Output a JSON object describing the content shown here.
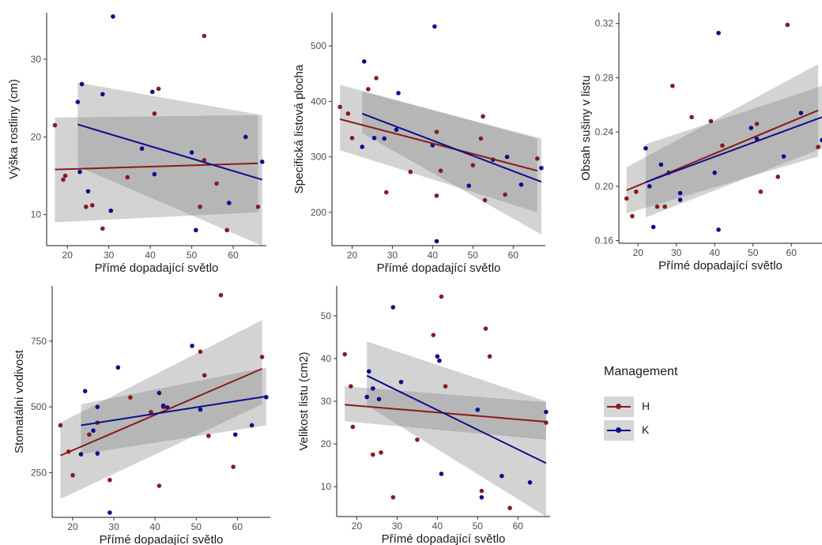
{
  "legend": {
    "title": "Management",
    "items": [
      {
        "label": "H",
        "color": "#8b1a1a"
      },
      {
        "label": "K",
        "color": "#0d0d8c"
      }
    ]
  },
  "chart_data": [
    {
      "type": "scatter",
      "xlabel": "Přímé dopadající světlo",
      "ylabel": "Výška rostliny (cm)",
      "xlim": [
        15,
        68
      ],
      "ylim": [
        6,
        36
      ],
      "xticks": [
        20,
        30,
        40,
        50,
        60
      ],
      "yticks": [
        10,
        20,
        30
      ],
      "series": [
        {
          "name": "H",
          "points": [
            [
              17,
              21.5
            ],
            [
              19,
              14.5
            ],
            [
              19.5,
              15
            ],
            [
              24.5,
              11
            ],
            [
              26,
              11.2
            ],
            [
              28.5,
              8.2
            ],
            [
              34.5,
              14.8
            ],
            [
              41,
              23
            ],
            [
              42,
              26.2
            ],
            [
              52,
              11
            ],
            [
              53,
              17
            ],
            [
              53,
              33
            ],
            [
              56,
              14
            ],
            [
              58.5,
              8
            ],
            [
              66,
              11
            ]
          ],
          "fit": {
            "x": [
              17,
              66
            ],
            "y": [
              15.8,
              16.6
            ],
            "ci_lo": [
              9,
              10.3
            ],
            "ci_hi": [
              22.5,
              22.8
            ]
          }
        },
        {
          "name": "K",
          "points": [
            [
              22.5,
              24.5
            ],
            [
              23,
              15.5
            ],
            [
              23.5,
              26.8
            ],
            [
              25,
              13
            ],
            [
              28.5,
              25.5
            ],
            [
              30.5,
              10.5
            ],
            [
              31,
              35.5
            ],
            [
              38,
              18.5
            ],
            [
              40.5,
              25.8
            ],
            [
              41,
              15.2
            ],
            [
              50,
              18
            ],
            [
              51,
              8
            ],
            [
              59,
              11.5
            ],
            [
              63,
              20
            ],
            [
              67,
              16.8
            ]
          ],
          "fit": {
            "x": [
              22.5,
              67
            ],
            "y": [
              21.6,
              14.5
            ],
            "ci_lo": [
              16.2,
              6
            ],
            "ci_hi": [
              27,
              22.8
            ]
          }
        }
      ]
    },
    {
      "type": "scatter",
      "xlabel": "Přímé dopadající světlo",
      "ylabel": "Specifická listová plocha",
      "xlim": [
        15,
        68
      ],
      "ylim": [
        140,
        560
      ],
      "xticks": [
        20,
        30,
        40,
        50,
        60
      ],
      "yticks": [
        200,
        300,
        400,
        500
      ],
      "series": [
        {
          "name": "H",
          "points": [
            [
              17,
              390
            ],
            [
              19,
              378
            ],
            [
              20,
              334
            ],
            [
              24,
              422
            ],
            [
              26,
              442
            ],
            [
              28.5,
              236
            ],
            [
              34.5,
              273
            ],
            [
              41,
              345
            ],
            [
              41,
              230
            ],
            [
              42,
              275
            ],
            [
              50,
              285
            ],
            [
              52,
              333
            ],
            [
              52.5,
              373
            ],
            [
              53,
              222
            ],
            [
              58,
              232
            ],
            [
              66,
              297
            ]
          ],
          "fit": {
            "x": [
              17,
              66
            ],
            "y": [
              368,
              275
            ],
            "ci_lo": [
              312,
              200
            ],
            "ci_hi": [
              430,
              333
            ]
          }
        },
        {
          "name": "K",
          "points": [
            [
              22.5,
              318
            ],
            [
              23,
              472
            ],
            [
              25.5,
              334
            ],
            [
              28,
              333
            ],
            [
              31,
              349
            ],
            [
              31.5,
              415
            ],
            [
              40,
              321
            ],
            [
              40.5,
              535
            ],
            [
              41,
              148
            ],
            [
              49,
              248
            ],
            [
              55,
              295
            ],
            [
              58.5,
              300
            ],
            [
              62,
              250
            ],
            [
              67,
              280
            ]
          ],
          "fit": {
            "x": [
              22.5,
              67
            ],
            "y": [
              378,
              255
            ],
            "ci_lo": [
              343,
              160
            ],
            "ci_hi": [
              418,
              333
            ]
          }
        }
      ]
    },
    {
      "type": "scatter",
      "xlabel": "Přímé dopadající světlo",
      "ylabel": "Obsah sušiny v listu",
      "xlim": [
        15,
        68
      ],
      "ylim": [
        0.158,
        0.328
      ],
      "xticks": [
        20,
        30,
        40,
        50,
        60
      ],
      "yticks": [
        0.16,
        0.2,
        0.24,
        0.28,
        0.32
      ],
      "series": [
        {
          "name": "H",
          "points": [
            [
              17,
              0.191
            ],
            [
              18.5,
              0.178
            ],
            [
              19.5,
              0.196
            ],
            [
              25,
              0.185
            ],
            [
              27,
              0.185
            ],
            [
              29,
              0.274
            ],
            [
              34,
              0.251
            ],
            [
              39,
              0.248
            ],
            [
              42,
              0.23
            ],
            [
              51,
              0.246
            ],
            [
              52,
              0.196
            ],
            [
              56.5,
              0.207
            ],
            [
              59,
              0.319
            ],
            [
              67,
              0.229
            ]
          ],
          "fit": {
            "x": [
              17,
              67
            ],
            "y": [
              0.197,
              0.256
            ],
            "ci_lo": [
              0.18,
              0.222
            ],
            "ci_hi": [
              0.214,
              0.29
            ]
          }
        },
        {
          "name": "K",
          "points": [
            [
              22,
              0.228
            ],
            [
              23,
              0.2
            ],
            [
              24,
              0.17
            ],
            [
              26,
              0.216
            ],
            [
              28,
              0.21
            ],
            [
              31,
              0.195
            ],
            [
              31,
              0.19
            ],
            [
              40,
              0.21
            ],
            [
              41,
              0.168
            ],
            [
              41,
              0.313
            ],
            [
              49.5,
              0.243
            ],
            [
              51,
              0.235
            ],
            [
              58,
              0.222
            ],
            [
              62.5,
              0.254
            ],
            [
              68,
              0.234
            ]
          ],
          "fit": {
            "x": [
              22,
              68
            ],
            "y": [
              0.203,
              0.251
            ],
            "ci_lo": [
              0.177,
              0.228
            ],
            "ci_hi": [
              0.231,
              0.274
            ]
          }
        }
      ]
    },
    {
      "type": "scatter",
      "xlabel": "Přímé dopadající světlo",
      "ylabel": "Stomatální vodivost",
      "xlim": [
        15,
        68
      ],
      "ylim": [
        80,
        960
      ],
      "xticks": [
        20,
        30,
        40,
        50,
        60
      ],
      "yticks": [
        250,
        500,
        750
      ],
      "series": [
        {
          "name": "H",
          "points": [
            [
              17,
              430
            ],
            [
              19,
              330
            ],
            [
              20,
              240
            ],
            [
              24,
              395
            ],
            [
              26,
              440
            ],
            [
              29,
              222
            ],
            [
              34,
              536
            ],
            [
              39,
              480
            ],
            [
              41,
              200
            ],
            [
              42,
              500
            ],
            [
              51,
              710
            ],
            [
              52,
              620
            ],
            [
              53,
              390
            ],
            [
              56,
              925
            ],
            [
              59,
              272
            ],
            [
              66,
              690
            ]
          ],
          "fit": {
            "x": [
              17,
              66
            ],
            "y": [
              315,
              645
            ],
            "ci_lo": [
              150,
              510
            ],
            "ci_hi": [
              440,
              830
            ]
          }
        },
        {
          "name": "K",
          "points": [
            [
              22,
              320
            ],
            [
              23,
              560
            ],
            [
              25,
              410
            ],
            [
              26,
              323
            ],
            [
              26,
              500
            ],
            [
              29,
              98
            ],
            [
              31,
              650
            ],
            [
              41,
              553
            ],
            [
              42,
              505
            ],
            [
              43,
              498
            ],
            [
              49,
              732
            ],
            [
              51,
              490
            ],
            [
              59.5,
              395
            ],
            [
              63.5,
              430
            ],
            [
              67,
              537
            ]
          ],
          "fit": {
            "x": [
              22,
              67
            ],
            "y": [
              430,
              540
            ],
            "ci_lo": [
              320,
              430
            ],
            "ci_hi": [
              510,
              650
            ]
          }
        }
      ]
    },
    {
      "type": "scatter",
      "xlabel": "Přímé dopadající světlo",
      "ylabel": "Velikost listu (cm2)",
      "xlim": [
        15,
        68
      ],
      "ylim": [
        3,
        57
      ],
      "xticks": [
        20,
        30,
        40,
        50,
        60
      ],
      "yticks": [
        10,
        20,
        30,
        40,
        50
      ],
      "series": [
        {
          "name": "H",
          "points": [
            [
              17,
              41
            ],
            [
              18.5,
              33.5
            ],
            [
              19,
              24
            ],
            [
              24,
              17.5
            ],
            [
              26,
              18
            ],
            [
              29,
              7.5
            ],
            [
              35,
              21
            ],
            [
              39,
              45.5
            ],
            [
              41,
              54.5
            ],
            [
              42,
              33.5
            ],
            [
              51,
              9
            ],
            [
              52,
              47
            ],
            [
              53,
              40.5
            ],
            [
              58,
              5
            ],
            [
              67,
              25
            ]
          ],
          "fit": {
            "x": [
              17,
              67
            ],
            "y": [
              29.2,
              25.2
            ],
            "ci_lo": [
              25.3,
              21
            ],
            "ci_hi": [
              33.5,
              29.8
            ]
          }
        },
        {
          "name": "K",
          "points": [
            [
              22.5,
              31
            ],
            [
              23,
              37
            ],
            [
              24,
              33
            ],
            [
              25.5,
              30.5
            ],
            [
              29,
              52
            ],
            [
              31,
              34.5
            ],
            [
              40,
              40.5
            ],
            [
              40.5,
              39.5
            ],
            [
              41,
              13
            ],
            [
              50,
              28
            ],
            [
              51,
              7.5
            ],
            [
              56,
              12.5
            ],
            [
              63,
              11
            ],
            [
              67,
              27.5
            ]
          ],
          "fit": {
            "x": [
              22.5,
              67
            ],
            "y": [
              36,
              15.5
            ],
            "ci_lo": [
              29,
              0
            ],
            "ci_hi": [
              44,
              30
            ]
          }
        }
      ]
    }
  ]
}
